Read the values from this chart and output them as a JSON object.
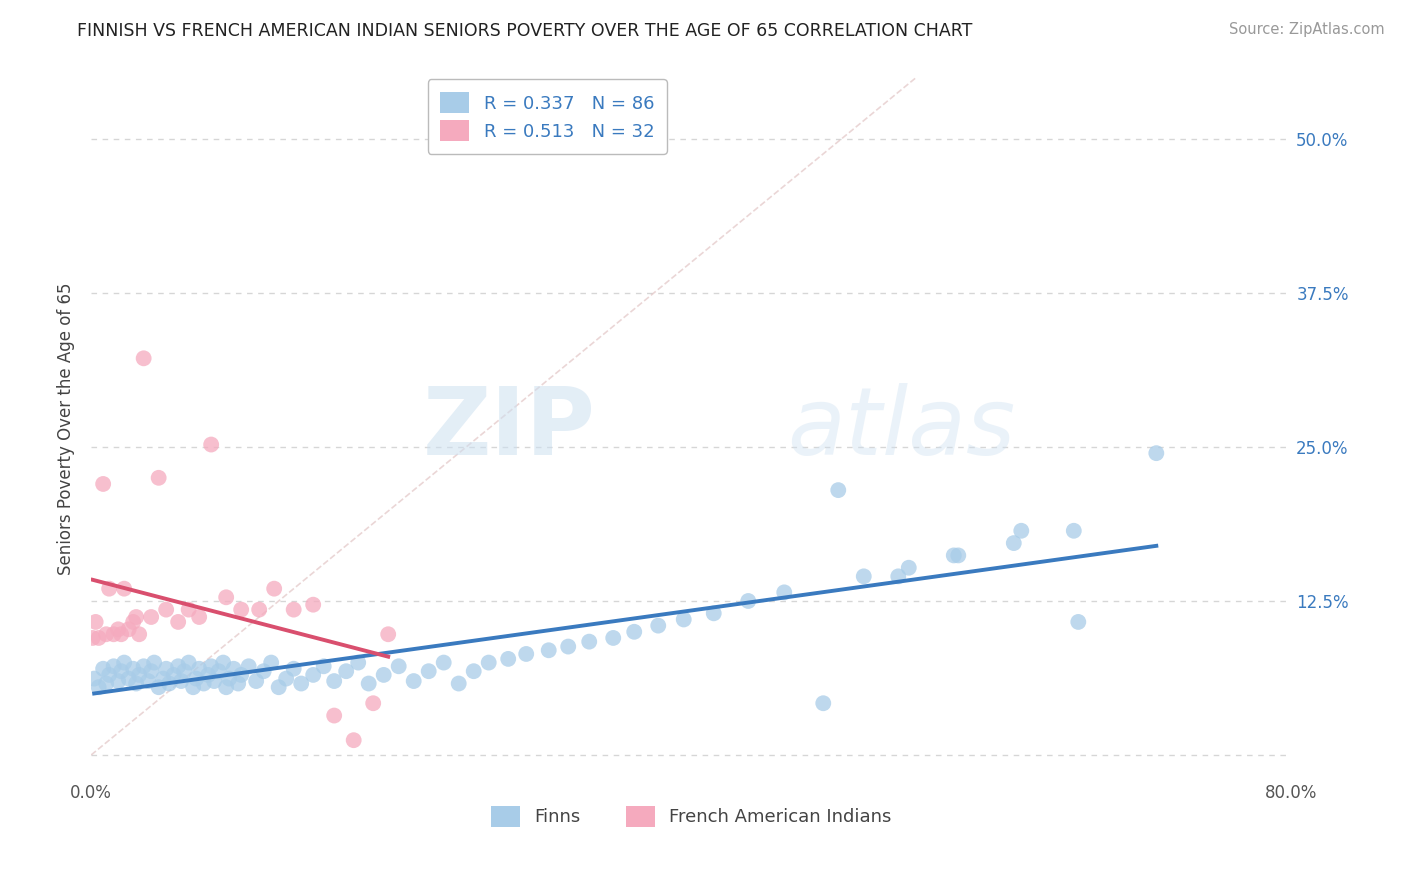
{
  "title": "FINNISH VS FRENCH AMERICAN INDIAN SENIORS POVERTY OVER THE AGE OF 65 CORRELATION CHART",
  "source": "Source: ZipAtlas.com",
  "ylabel": "Seniors Poverty Over the Age of 65",
  "xlim": [
    0.0,
    0.8
  ],
  "ylim": [
    -0.02,
    0.55
  ],
  "xticks": [
    0.0,
    0.1,
    0.2,
    0.3,
    0.4,
    0.5,
    0.6,
    0.7,
    0.8
  ],
  "xticklabels": [
    "0.0%",
    "",
    "",
    "",
    "",
    "",
    "",
    "",
    "80.0%"
  ],
  "yticks": [
    0.0,
    0.125,
    0.25,
    0.375,
    0.5
  ],
  "right_yticklabels": [
    "",
    "12.5%",
    "25.0%",
    "37.5%",
    "50.0%"
  ],
  "r_finnish": 0.337,
  "n_finnish": 86,
  "r_french": 0.513,
  "n_french": 32,
  "legend_labels": [
    "Finns",
    "French American Indians"
  ],
  "color_finnish": "#a8cce8",
  "color_french": "#f5aabe",
  "line_color_finnish": "#3a7abf",
  "line_color_french": "#d94f6e",
  "watermark_zip": "ZIP",
  "watermark_atlas": "atlas",
  "background_color": "#ffffff",
  "grid_color": "#cccccc",
  "fin_x": [
    0.002,
    0.005,
    0.008,
    0.01,
    0.012,
    0.015,
    0.018,
    0.02,
    0.022,
    0.025,
    0.028,
    0.03,
    0.032,
    0.035,
    0.038,
    0.04,
    0.042,
    0.045,
    0.048,
    0.05,
    0.052,
    0.055,
    0.058,
    0.06,
    0.062,
    0.065,
    0.068,
    0.07,
    0.072,
    0.075,
    0.078,
    0.08,
    0.082,
    0.085,
    0.088,
    0.09,
    0.092,
    0.095,
    0.098,
    0.1,
    0.105,
    0.11,
    0.115,
    0.12,
    0.125,
    0.13,
    0.135,
    0.14,
    0.148,
    0.155,
    0.162,
    0.17,
    0.178,
    0.185,
    0.195,
    0.205,
    0.215,
    0.225,
    0.235,
    0.245,
    0.255,
    0.265,
    0.278,
    0.29,
    0.305,
    0.318,
    0.332,
    0.348,
    0.362,
    0.378,
    0.395,
    0.415,
    0.438,
    0.462,
    0.488,
    0.515,
    0.545,
    0.578,
    0.615,
    0.655,
    0.498,
    0.538,
    0.575,
    0.62,
    0.658,
    0.71
  ],
  "fin_y": [
    0.062,
    0.055,
    0.07,
    0.058,
    0.065,
    0.072,
    0.06,
    0.068,
    0.075,
    0.062,
    0.07,
    0.058,
    0.065,
    0.072,
    0.06,
    0.068,
    0.075,
    0.055,
    0.062,
    0.07,
    0.058,
    0.065,
    0.072,
    0.06,
    0.068,
    0.075,
    0.055,
    0.062,
    0.07,
    0.058,
    0.065,
    0.072,
    0.06,
    0.068,
    0.075,
    0.055,
    0.062,
    0.07,
    0.058,
    0.065,
    0.072,
    0.06,
    0.068,
    0.075,
    0.055,
    0.062,
    0.07,
    0.058,
    0.065,
    0.072,
    0.06,
    0.068,
    0.075,
    0.058,
    0.065,
    0.072,
    0.06,
    0.068,
    0.075,
    0.058,
    0.068,
    0.075,
    0.078,
    0.082,
    0.085,
    0.088,
    0.092,
    0.095,
    0.1,
    0.105,
    0.11,
    0.115,
    0.125,
    0.132,
    0.042,
    0.145,
    0.152,
    0.162,
    0.172,
    0.182,
    0.215,
    0.145,
    0.162,
    0.182,
    0.108,
    0.245
  ],
  "fre_x": [
    0.001,
    0.003,
    0.005,
    0.008,
    0.01,
    0.012,
    0.015,
    0.018,
    0.02,
    0.022,
    0.025,
    0.028,
    0.03,
    0.032,
    0.035,
    0.04,
    0.045,
    0.05,
    0.058,
    0.065,
    0.072,
    0.08,
    0.09,
    0.1,
    0.112,
    0.122,
    0.135,
    0.148,
    0.162,
    0.175,
    0.188,
    0.198
  ],
  "fre_y": [
    0.095,
    0.108,
    0.095,
    0.22,
    0.098,
    0.135,
    0.098,
    0.102,
    0.098,
    0.135,
    0.102,
    0.108,
    0.112,
    0.098,
    0.322,
    0.112,
    0.225,
    0.118,
    0.108,
    0.118,
    0.112,
    0.252,
    0.128,
    0.118,
    0.118,
    0.135,
    0.118,
    0.122,
    0.032,
    0.012,
    0.042,
    0.098
  ]
}
